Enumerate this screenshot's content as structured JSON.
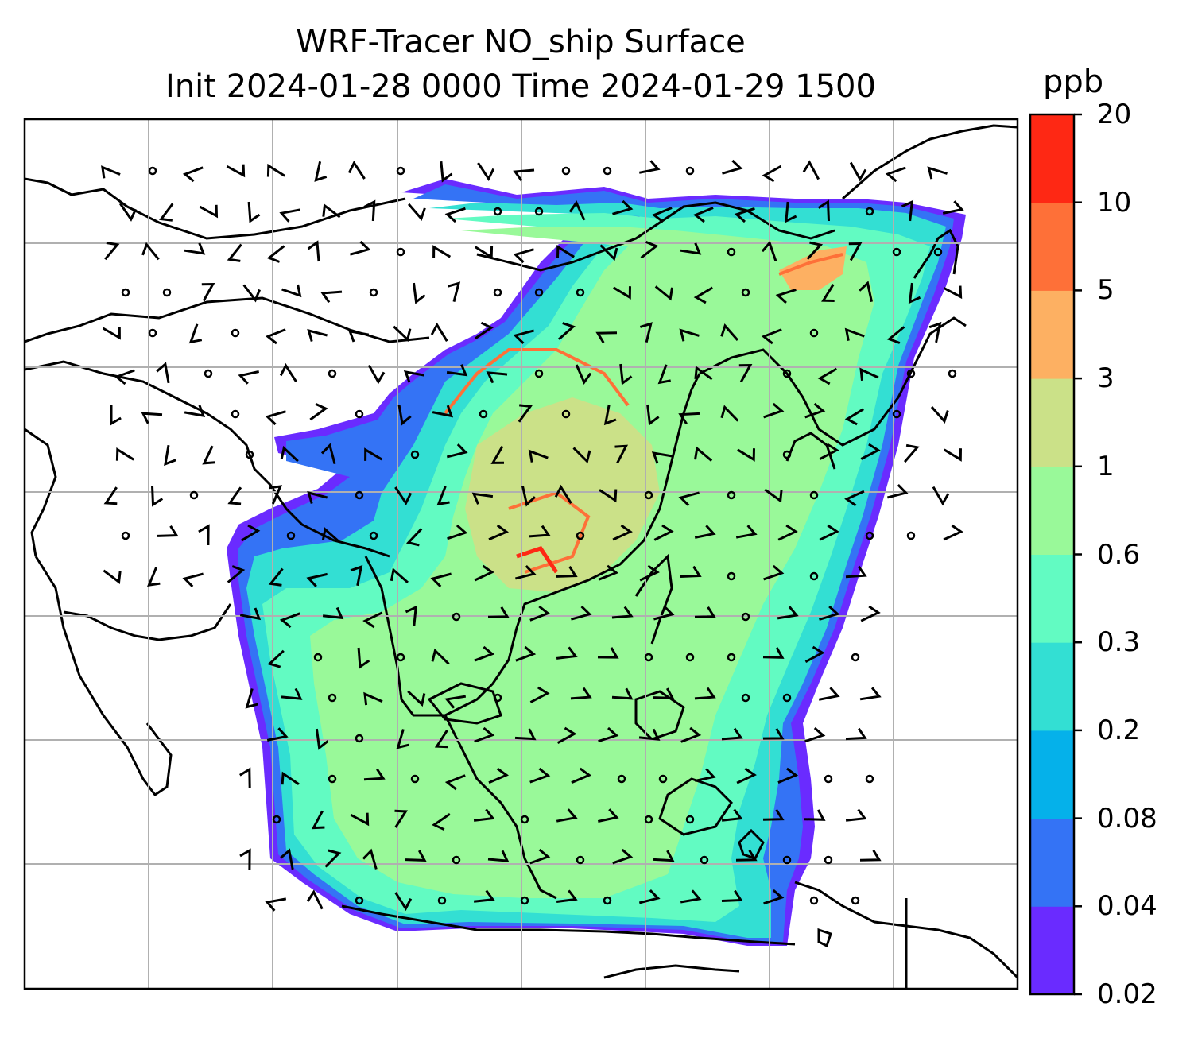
{
  "title": {
    "line1": "WRF-Tracer NO_ship Surface",
    "line2": "Init 2024-01-28 0000 Time 2024-01-29 1500"
  },
  "colorbar": {
    "unit": "ppb",
    "levels": [
      "0.02",
      "0.04",
      "0.08",
      "0.2",
      "0.3",
      "0.6",
      "1",
      "3",
      "5",
      "10",
      "20"
    ],
    "colors": [
      "#6a2bff",
      "#3473f5",
      "#05b1ea",
      "#33dfd3",
      "#62fbc2",
      "#99f999",
      "#cbe188",
      "#fdb062",
      "#fe7038",
      "#fe2814"
    ]
  },
  "map": {
    "field": "NO_ship",
    "level": "Surface",
    "gridlines": true,
    "wind_barbs": true
  }
}
